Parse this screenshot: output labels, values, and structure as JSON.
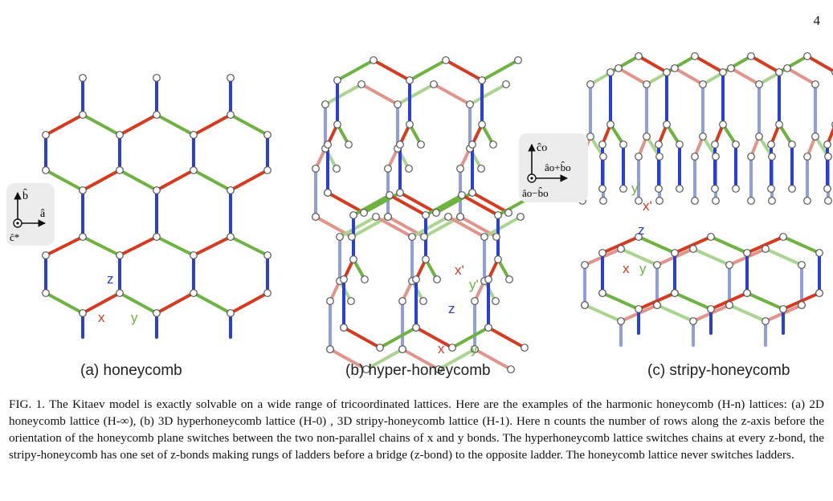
{
  "page_number": "4",
  "colors": {
    "x_bond": "#d63a1f",
    "y_bond": "#6db33f",
    "z_bond": "#2a3fd6",
    "x_bond_faded": "#e2948a",
    "y_bond_faded": "#a9d58f",
    "z_bond_faded": "#8f9ee0",
    "node_fill": "#ffffff",
    "node_stroke": "#555555",
    "axis_box": "#ececec"
  },
  "panels": [
    {
      "label": "(a) honeycomb",
      "axes": {
        "up": "b̂",
        "right": "â",
        "out": "ĉ*"
      },
      "bond_labels": {
        "x": "x",
        "y": "y",
        "z": "z"
      }
    },
    {
      "label": "(b) hyper-honeycomb",
      "bond_labels": {
        "x": "x",
        "y": "y",
        "z": "z",
        "xp": "x'",
        "yp": "y'"
      }
    },
    {
      "label": "(c) stripy-honeycomb",
      "axes": {
        "up": "ĉo",
        "right": "âo+b̂o",
        "out": "âo−b̂o"
      },
      "bond_labels": {
        "x": "x",
        "y": "y",
        "z": "z",
        "xp": "x'",
        "yp": "y'"
      }
    }
  ],
  "caption": {
    "prefix": "FIG. 1.",
    "text": "The Kitaev model is exactly solvable on a wide range of tricoordinated lattices. Here are the examples of the harmonic honeycomb (H-n) lattices: (a) 2D honeycomb lattice (H-∞), (b) 3D hyperhoneycomb lattice (H-0) , 3D stripy-honeycomb lattice (H-1). Here n counts the number of rows along the z-axis before the orientation of the honeycomb plane switches between the two non-parallel chains of x and y bonds. The hyperhoneycomb lattice switches chains at every z-bond, the stripy-honeycomb has one set of z-bonds making rungs of ladders before a bridge (z-bond) to the opposite ladder. The honeycomb lattice never switches ladders."
  }
}
